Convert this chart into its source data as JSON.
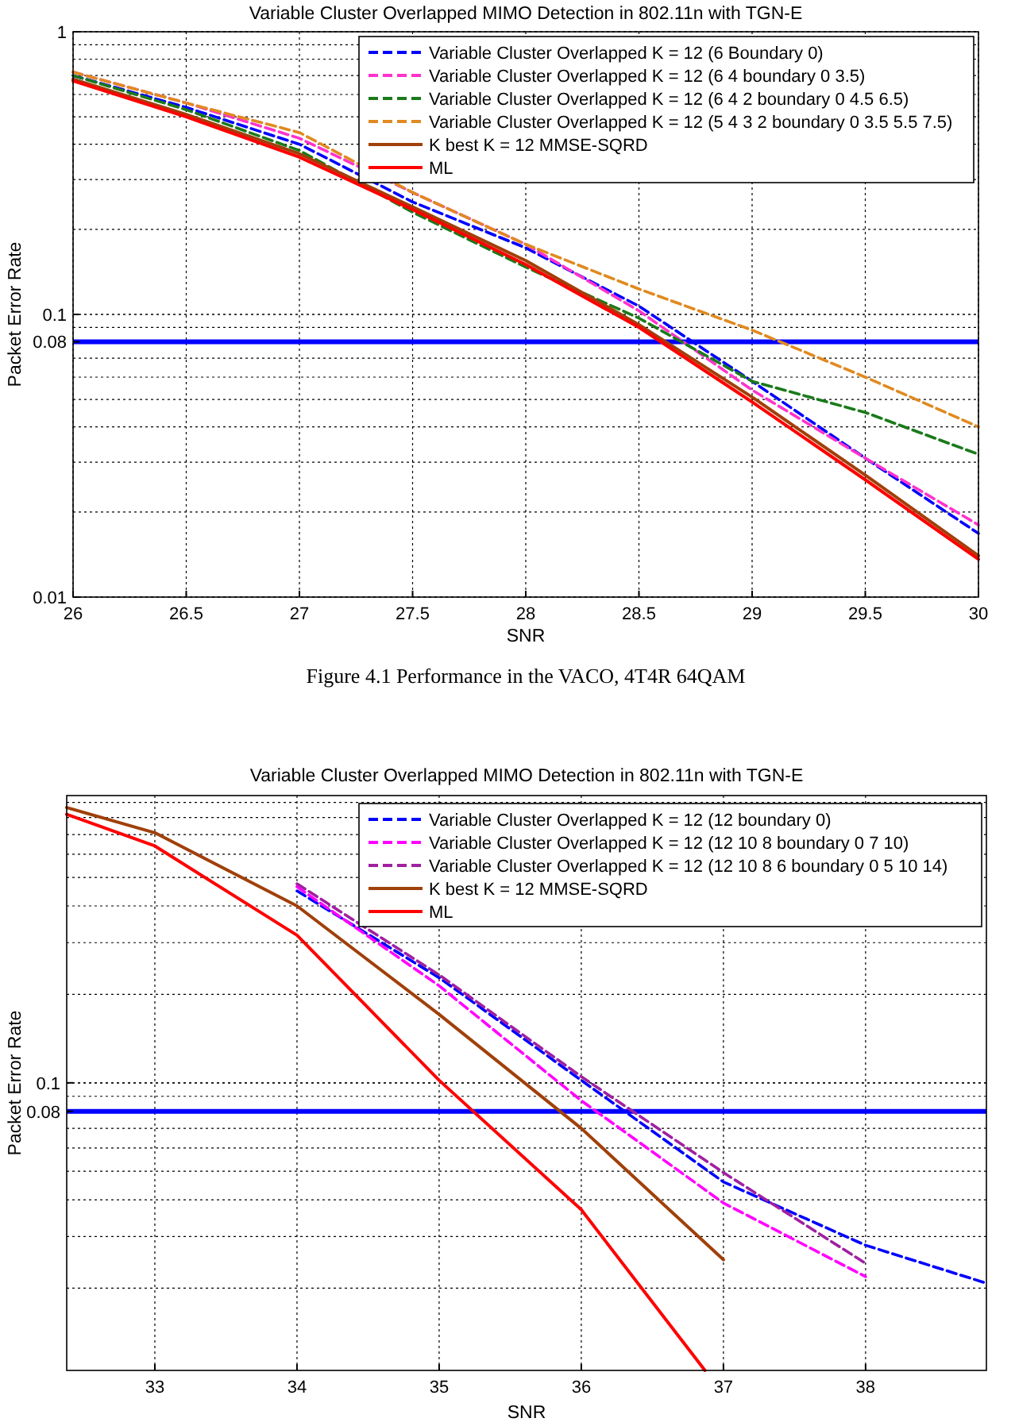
{
  "chart_data": [
    {
      "type": "line",
      "title": "Variable Cluster Overlapped MIMO Detection in 802.11n with TGN-E",
      "xlabel": "SNR",
      "ylabel": "Packet Error Rate",
      "log": "y",
      "grid": true,
      "legend": "top right",
      "line_style": "solid",
      "xlim": [
        26,
        30
      ],
      "ylim": [
        0.01,
        1
      ],
      "xticks": [
        26,
        26.5,
        27,
        27.5,
        28,
        28.5,
        29,
        29.5,
        30
      ],
      "yticks": [
        0.01,
        0.08,
        0.1,
        1
      ],
      "x": [
        26,
        26.5,
        27,
        27.5,
        28,
        28.5,
        29,
        29.5,
        30
      ],
      "series": [
        {
          "name": "Variable Cluster Overlapped K = 12 (6 Boundary 0)",
          "color": "#0000ff",
          "line_style": "dashed",
          "values": [
            0.7,
            0.54,
            0.4,
            0.25,
            0.172,
            0.107,
            0.058,
            0.031,
            0.0168
          ]
        },
        {
          "name": "Variable Cluster Overlapped K = 12 (6 4 boundary 0 3.5)",
          "color": "#ff33cc",
          "line_style": "dashed",
          "values": [
            0.72,
            0.56,
            0.42,
            0.27,
            0.177,
            0.103,
            0.054,
            0.031,
            0.018
          ]
        },
        {
          "name": "Variable Cluster Overlapped K = 12 (6 4 2 boundary 0 4.5 6.5)",
          "color": "#1a7a1a",
          "line_style": "dashed",
          "values": [
            0.7,
            0.53,
            0.38,
            0.23,
            0.147,
            0.097,
            0.058,
            0.045,
            0.032
          ]
        },
        {
          "name": "Variable Cluster Overlapped K = 12 (5 4 3 2 boundary 0 3.5 5.5 7.5)",
          "color": "#e08a20",
          "line_style": "dashed",
          "values": [
            0.72,
            0.56,
            0.44,
            0.27,
            0.177,
            0.123,
            0.088,
            0.06,
            0.04
          ]
        },
        {
          "name": "K best K = 12 MMSE-SQRD",
          "color": "#a0400a",
          "values": [
            0.68,
            0.51,
            0.37,
            0.24,
            0.155,
            0.092,
            0.051,
            0.027,
            0.014
          ]
        },
        {
          "name": "ML",
          "color": "#ff0000",
          "values": [
            0.67,
            0.5,
            0.36,
            0.235,
            0.15,
            0.09,
            0.049,
            0.026,
            0.0136
          ]
        }
      ],
      "ref_lines": [
        {
          "axis": "y",
          "value": 0.08,
          "color": "#0000ff"
        }
      ],
      "annotations": [
        "Figure 4.1 Performance in the VACO, 4T4R 64QAM"
      ]
    },
    {
      "type": "line",
      "title": "Variable Cluster Overlapped MIMO Detection in 802.11n with TGN-E",
      "xlabel": "SNR",
      "ylabel": "Packet Error Rate",
      "log": "y",
      "grid": true,
      "legend": "top right",
      "line_style": "solid",
      "xlim": [
        32.38,
        38.85
      ],
      "ylim": [
        0.0105,
        0.95
      ],
      "xticks": [
        33,
        34,
        35,
        36,
        37,
        38
      ],
      "yticks": [
        0.08,
        0.1
      ],
      "series": [
        {
          "name": "Variable Cluster Overlapped K = 12 (12 boundary 0)",
          "color": "#0000ff",
          "line_style": "dashed",
          "x": [
            34,
            35,
            36,
            37,
            38,
            38.85
          ],
          "values": [
            0.45,
            0.228,
            0.102,
            0.046,
            0.028,
            0.0208
          ]
        },
        {
          "name": "Variable Cluster Overlapped K = 12 (12 10 8 boundary 0 7 10)",
          "color": "#ff00ff",
          "line_style": "dashed",
          "x": [
            34,
            35,
            36,
            37,
            38
          ],
          "values": [
            0.465,
            0.214,
            0.087,
            0.039,
            0.0219
          ]
        },
        {
          "name": "Variable Cluster Overlapped K = 12 (12 10 8 6 boundary 0 5 10 14)",
          "color": "#a020a0",
          "line_style": "dashed",
          "x": [
            34,
            35,
            36,
            37,
            38
          ],
          "values": [
            0.476,
            0.233,
            0.105,
            0.0495,
            0.0243
          ]
        },
        {
          "name": "K best K = 12 MMSE-SQRD",
          "color": "#a0400a",
          "x": [
            32.38,
            33,
            34,
            35,
            36,
            37
          ],
          "values": [
            0.865,
            0.71,
            0.4,
            0.171,
            0.07,
            0.025
          ]
        },
        {
          "name": "ML",
          "color": "#ff0000",
          "x": [
            32.38,
            33,
            34,
            35,
            36,
            36.87
          ],
          "values": [
            0.82,
            0.64,
            0.318,
            0.102,
            0.037,
            0.0105
          ]
        }
      ],
      "ref_lines": [
        {
          "axis": "y",
          "value": 0.08,
          "color": "#0000ff"
        }
      ]
    }
  ]
}
